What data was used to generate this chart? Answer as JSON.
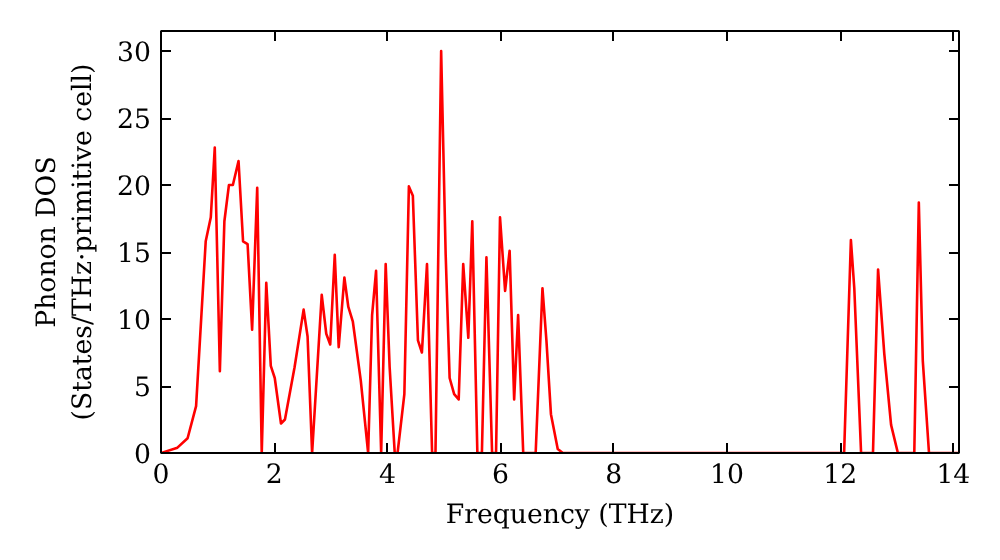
{
  "chart_data": {
    "type": "line",
    "xlabel": "Frequency (THz)",
    "ylabel": "Phonon DOS\n(States/THz·primitive cell)",
    "x": [
      0,
      0.29,
      0.47,
      0.62,
      0.79,
      0.88,
      0.95,
      1.04,
      1.12,
      1.2,
      1.27,
      1.37,
      1.45,
      1.53,
      1.61,
      1.7,
      1.78,
      1.86,
      1.94,
      2.01,
      2.12,
      2.19,
      2.36,
      2.52,
      2.59,
      2.67,
      2.84,
      2.92,
      2.99,
      3.07,
      3.14,
      3.24,
      3.31,
      3.39,
      3.53,
      3.66,
      3.73,
      3.8,
      3.89,
      3.97,
      4.04,
      4.13,
      4.18,
      4.3,
      4.38,
      4.45,
      4.54,
      4.61,
      4.7,
      4.79,
      4.85,
      4.95,
      5.03,
      5.1,
      5.18,
      5.26,
      5.34,
      5.43,
      5.5,
      5.59,
      5.67,
      5.75,
      5.85,
      5.92,
      5.99,
      6.08,
      6.16,
      6.24,
      6.31,
      6.4,
      6.62,
      6.74,
      6.81,
      6.89,
      7.01,
      7.1,
      12.07,
      12.19,
      12.25,
      12.37,
      12.58,
      12.67,
      12.78,
      12.9,
      13.02,
      13.31,
      13.39,
      13.46,
      13.57,
      14.1
    ],
    "series": [
      {
        "color": "#ff0000",
        "values": [
          0,
          0.4,
          1.1,
          3.5,
          15.8,
          17.6,
          22.8,
          6.1,
          17.3,
          20.0,
          20.0,
          21.8,
          15.8,
          15.6,
          9.2,
          19.8,
          0,
          12.7,
          6.5,
          5.6,
          2.2,
          2.5,
          6.4,
          10.7,
          8.7,
          0,
          11.8,
          8.9,
          8.1,
          14.8,
          7.9,
          13.1,
          10.9,
          9.8,
          5.4,
          0,
          10.3,
          13.6,
          0,
          14.1,
          6.4,
          0,
          0,
          4.4,
          19.9,
          19.2,
          8.4,
          7.5,
          14.1,
          0,
          0,
          30.0,
          14.8,
          5.6,
          4.4,
          4.0,
          14.1,
          8.6,
          17.3,
          0,
          0,
          14.6,
          0,
          0,
          17.6,
          12.1,
          15.1,
          4.0,
          10.3,
          0,
          0,
          12.3,
          8.4,
          2.9,
          0.3,
          0,
          0,
          15.9,
          12.3,
          0,
          0,
          13.7,
          7.4,
          2.1,
          0,
          0,
          18.7,
          6.9,
          0,
          0
        ]
      }
    ],
    "xlim": [
      0,
      14.1
    ],
    "ylim": [
      0,
      31.5
    ],
    "xticks": [
      0,
      2,
      4,
      6,
      8,
      10,
      12,
      14
    ],
    "yticks": [
      0,
      5,
      10,
      15,
      20,
      25,
      30
    ],
    "grid": false
  }
}
